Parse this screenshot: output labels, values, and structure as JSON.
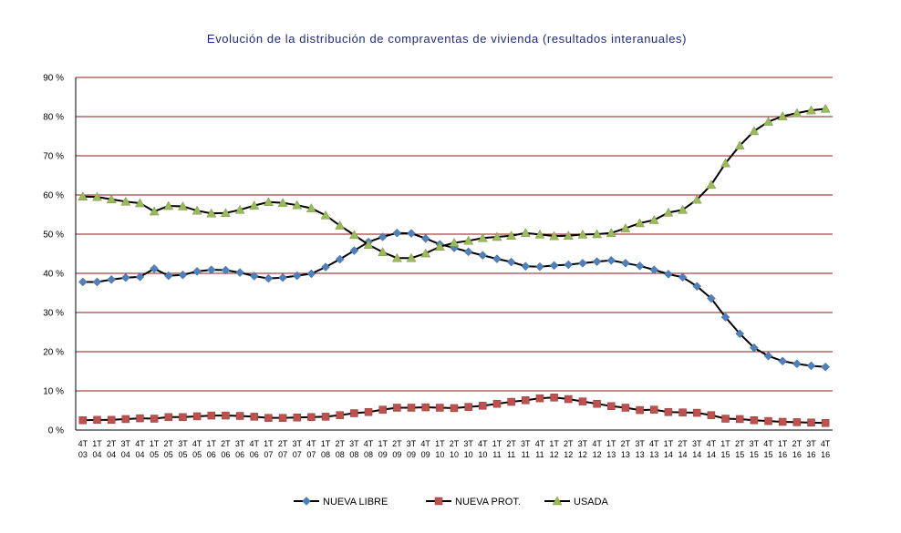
{
  "chart_data": {
    "type": "line",
    "title": "Evolución de la distribución de compraventas de vivienda (resultados interanuales)",
    "xlabel": "",
    "ylabel": "",
    "ylim": [
      0,
      90
    ],
    "ytick_labels": [
      "0 %",
      "10 %",
      "20 %",
      "30 %",
      "40 %",
      "50 %",
      "60 %",
      "70 %",
      "80 %",
      "90 %"
    ],
    "grid": true,
    "legend_position": "bottom",
    "categories": [
      [
        "4T",
        "03"
      ],
      [
        "1T",
        "04"
      ],
      [
        "2T",
        "04"
      ],
      [
        "3T",
        "04"
      ],
      [
        "4T",
        "04"
      ],
      [
        "1T",
        "05"
      ],
      [
        "2T",
        "05"
      ],
      [
        "3T",
        "05"
      ],
      [
        "4T",
        "05"
      ],
      [
        "1T",
        "06"
      ],
      [
        "2T",
        "06"
      ],
      [
        "3T",
        "06"
      ],
      [
        "4T",
        "06"
      ],
      [
        "1T",
        "07"
      ],
      [
        "2T",
        "07"
      ],
      [
        "3T",
        "07"
      ],
      [
        "4T",
        "07"
      ],
      [
        "1T",
        "08"
      ],
      [
        "2T",
        "08"
      ],
      [
        "3T",
        "08"
      ],
      [
        "4T",
        "08"
      ],
      [
        "1T",
        "09"
      ],
      [
        "2T",
        "09"
      ],
      [
        "3T",
        "09"
      ],
      [
        "4T",
        "09"
      ],
      [
        "1T",
        "10"
      ],
      [
        "2T",
        "10"
      ],
      [
        "3T",
        "10"
      ],
      [
        "4T",
        "10"
      ],
      [
        "1T",
        "11"
      ],
      [
        "2T",
        "11"
      ],
      [
        "3T",
        "11"
      ],
      [
        "4T",
        "11"
      ],
      [
        "1T",
        "12"
      ],
      [
        "2T",
        "12"
      ],
      [
        "3T",
        "12"
      ],
      [
        "4T",
        "12"
      ],
      [
        "1T",
        "13"
      ],
      [
        "2T",
        "13"
      ],
      [
        "3T",
        "13"
      ],
      [
        "4T",
        "13"
      ],
      [
        "1T",
        "14"
      ],
      [
        "2T",
        "14"
      ],
      [
        "3T",
        "14"
      ],
      [
        "4T",
        "14"
      ],
      [
        "1T",
        "15"
      ],
      [
        "2T",
        "15"
      ],
      [
        "3T",
        "15"
      ],
      [
        "4T",
        "15"
      ],
      [
        "1T",
        "16"
      ],
      [
        "2T",
        "16"
      ],
      [
        "3T",
        "16"
      ],
      [
        "4T",
        "16"
      ]
    ],
    "series": [
      {
        "name": "NUEVA LIBRE",
        "color": "#4F81BD",
        "marker": "diamond",
        "values": [
          37.8,
          37.8,
          38.4,
          38.9,
          39.1,
          41.2,
          39.4,
          39.6,
          40.5,
          40.9,
          40.8,
          40.2,
          39.3,
          38.7,
          38.9,
          39.4,
          39.9,
          41.6,
          43.6,
          45.8,
          48.0,
          49.3,
          50.3,
          50.2,
          48.9,
          47.4,
          46.5,
          45.5,
          44.6,
          43.7,
          42.9,
          41.8,
          41.7,
          42.0,
          42.2,
          42.6,
          43.0,
          43.3,
          42.6,
          41.9,
          40.9,
          39.8,
          39.0,
          36.7,
          33.6,
          28.8,
          24.6,
          21.0,
          18.9,
          17.6,
          16.9,
          16.4,
          16.1
        ]
      },
      {
        "name": "NUEVA PROT.",
        "color": "#C0504D",
        "marker": "square",
        "values": [
          2.5,
          2.6,
          2.6,
          2.8,
          3.0,
          2.9,
          3.3,
          3.3,
          3.5,
          3.7,
          3.7,
          3.6,
          3.4,
          3.1,
          3.1,
          3.2,
          3.3,
          3.4,
          3.8,
          4.3,
          4.6,
          5.2,
          5.7,
          5.7,
          5.8,
          5.7,
          5.6,
          5.9,
          6.2,
          6.7,
          7.2,
          7.6,
          8.1,
          8.3,
          7.9,
          7.3,
          6.7,
          6.1,
          5.7,
          5.1,
          5.2,
          4.6,
          4.5,
          4.4,
          3.8,
          2.9,
          2.8,
          2.5,
          2.3,
          2.1,
          2.0,
          1.9,
          1.8
        ]
      },
      {
        "name": "USADA",
        "color": "#9BBB59",
        "marker": "triangle",
        "values": [
          59.6,
          59.5,
          58.9,
          58.3,
          57.9,
          55.8,
          57.2,
          57.1,
          56.0,
          55.3,
          55.4,
          56.2,
          57.3,
          58.2,
          58.0,
          57.4,
          56.6,
          54.8,
          52.2,
          49.8,
          47.3,
          45.4,
          43.9,
          43.9,
          45.1,
          46.8,
          47.8,
          48.3,
          49.0,
          49.3,
          49.6,
          50.3,
          49.9,
          49.5,
          49.6,
          49.9,
          50.0,
          50.3,
          51.5,
          52.8,
          53.6,
          55.5,
          56.2,
          58.8,
          62.6,
          68.1,
          72.6,
          76.3,
          78.7,
          80.1,
          80.9,
          81.6,
          82.0
        ]
      }
    ]
  }
}
